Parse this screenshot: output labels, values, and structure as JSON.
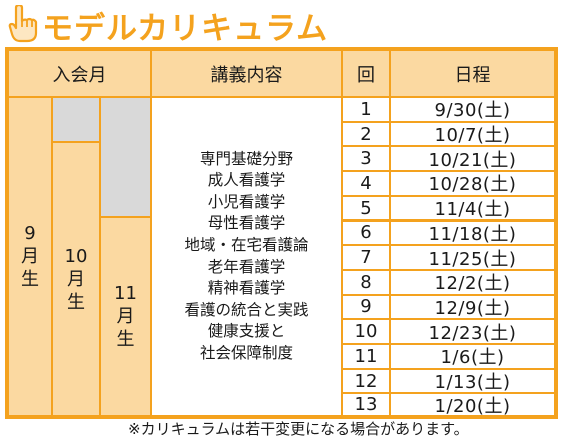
{
  "title": "モデルカリキュラム",
  "colors": {
    "accent": "#f4a21e",
    "band": "#fbd9a1",
    "gray": "#d9d9d9"
  },
  "icon": "pointing-hand-icon",
  "header": {
    "enrollment": "入会月",
    "lecture": "講義内容",
    "session": "回",
    "schedule": "日程"
  },
  "enrollment_groups": [
    [
      "9",
      "月",
      "生"
    ],
    [
      "10",
      "月",
      "生"
    ],
    [
      "11",
      "月",
      "生"
    ]
  ],
  "lectures": [
    "専門基礎分野",
    "成人看護学",
    "小児看護学",
    "母性看護学",
    "地域・在宅看護論",
    "老年看護学",
    "精神看護学",
    "看護の統合と実践",
    "健康支援と",
    "社会保障制度"
  ],
  "rows": [
    {
      "no": "1",
      "date": "9/30(土)"
    },
    {
      "no": "2",
      "date": "10/7(土)"
    },
    {
      "no": "3",
      "date": "10/21(土)"
    },
    {
      "no": "4",
      "date": "10/28(土)"
    },
    {
      "no": "5",
      "date": "11/4(土)"
    },
    {
      "no": "6",
      "date": "11/18(土)"
    },
    {
      "no": "7",
      "date": "11/25(土)"
    },
    {
      "no": "8",
      "date": "12/2(土)"
    },
    {
      "no": "9",
      "date": "12/9(土)"
    },
    {
      "no": "10",
      "date": "12/23(土)"
    },
    {
      "no": "11",
      "date": "1/6(土)"
    },
    {
      "no": "12",
      "date": "1/13(土)"
    },
    {
      "no": "13",
      "date": "1/20(土)"
    }
  ],
  "note": "※カリキュラムは若干変更になる場合があります。"
}
